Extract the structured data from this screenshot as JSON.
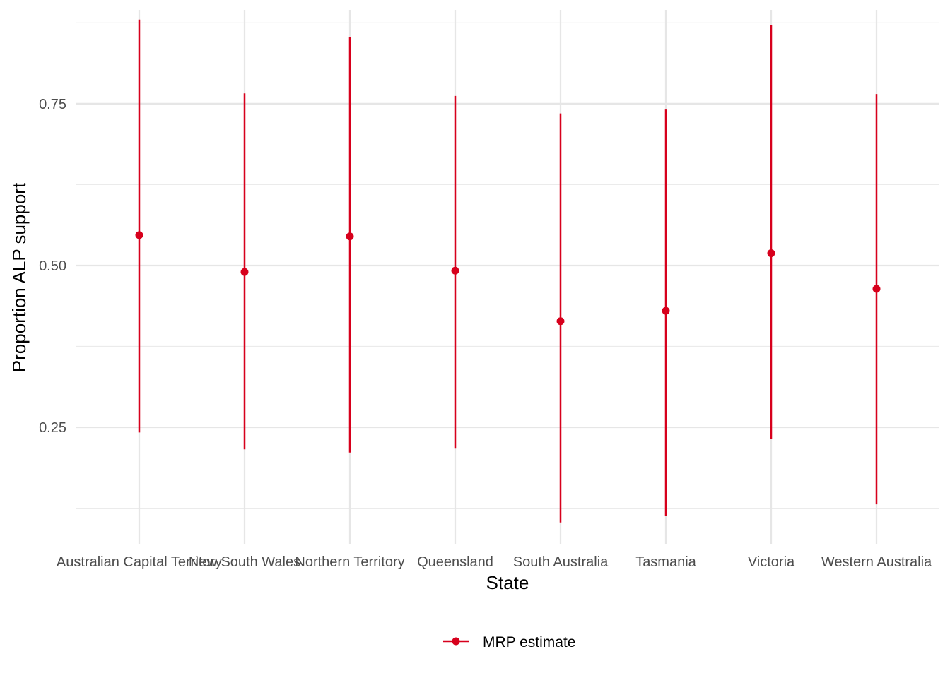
{
  "chart_data": {
    "type": "scatter",
    "xlabel": "State",
    "ylabel": "Proportion ALP support",
    "ylim": [
      0.07,
      0.895
    ],
    "yticks": [
      0.25,
      0.5,
      0.75
    ],
    "ytick_labels": [
      "0.25",
      "0.50",
      "0.75"
    ],
    "grid": true,
    "legend_position": "bottom",
    "categories": [
      "Australian Capital Territory",
      "New South Wales",
      "Northern Territory",
      "Queensland",
      "South Australia",
      "Tasmania",
      "Victoria",
      "Western Australia"
    ],
    "series": [
      {
        "name": "MRP estimate",
        "color": "#d7001c",
        "values": [
          0.547,
          0.49,
          0.545,
          0.492,
          0.414,
          0.43,
          0.519,
          0.464
        ],
        "lower": [
          0.242,
          0.216,
          0.211,
          0.217,
          0.103,
          0.113,
          0.232,
          0.131
        ],
        "upper": [
          0.88,
          0.766,
          0.853,
          0.762,
          0.735,
          0.741,
          0.871,
          0.765
        ]
      }
    ]
  }
}
